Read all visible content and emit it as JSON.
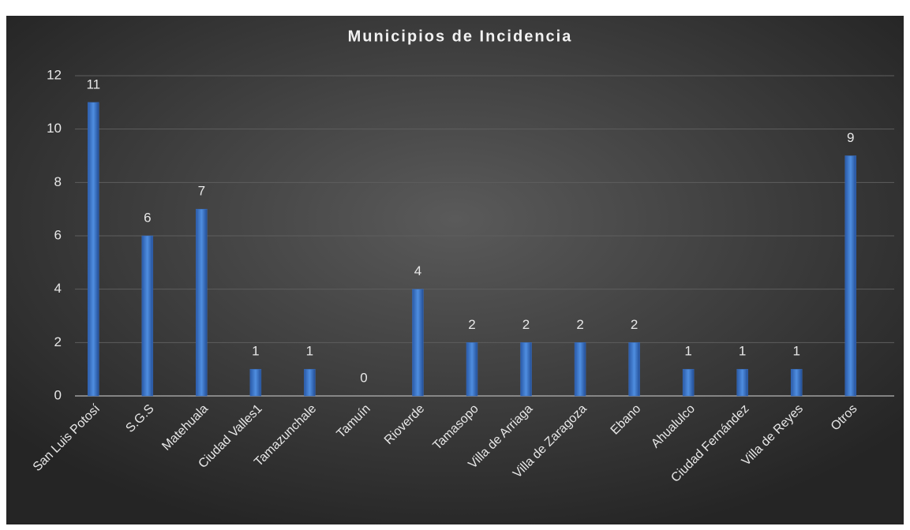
{
  "chart_data": {
    "type": "bar",
    "title": "Municipios de Incidencia",
    "categories": [
      "San Luis Potosí",
      "S.G.S",
      "Matehuala",
      "Ciudad Valles1",
      "Tamazunchale",
      "Tamuín",
      "Rioverde",
      "Tamasopo",
      "Villa de Arriaga",
      "Villa de Zaragoza",
      "Ebano",
      "Ahualulco",
      "Ciudad Fernández",
      "Villa de Reyes",
      "Otros"
    ],
    "values": [
      11,
      6,
      7,
      1,
      1,
      0,
      4,
      2,
      2,
      2,
      2,
      1,
      1,
      1,
      9
    ],
    "color": "#3a6fc0",
    "ylim": [
      0,
      12
    ],
    "yticks": [
      0,
      2,
      4,
      6,
      8,
      10,
      12
    ],
    "grid": true
  }
}
